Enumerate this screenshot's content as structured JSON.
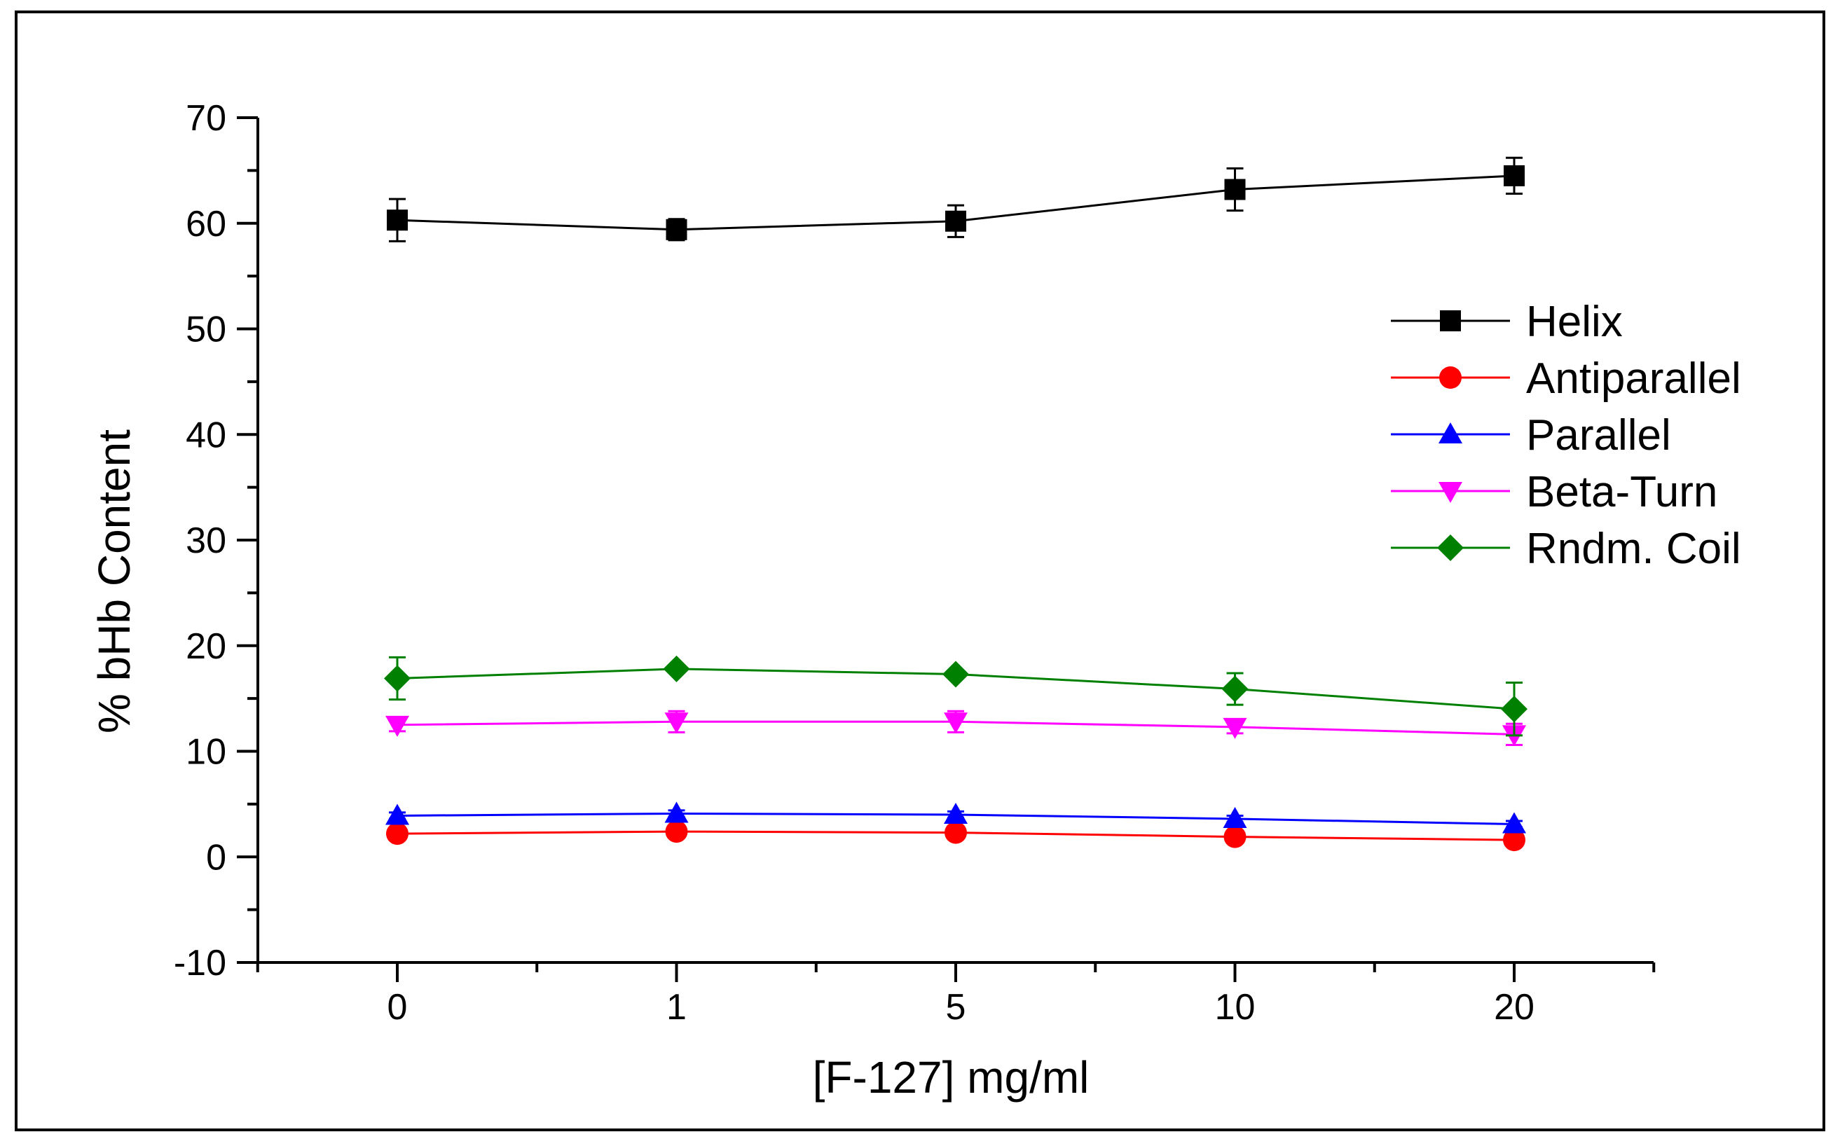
{
  "chart_data": {
    "type": "line",
    "title": "",
    "xlabel": "[F-127] mg/ml",
    "ylabel": "% bHb Content",
    "categories": [
      "0",
      "1",
      "5",
      "10",
      "20"
    ],
    "ylim": [
      -10,
      70
    ],
    "yticks": [
      -10,
      0,
      10,
      20,
      30,
      40,
      50,
      60,
      70
    ],
    "y_minor_step": 5,
    "grid": false,
    "legend_position": "right",
    "series": [
      {
        "name": "Helix",
        "color": "#000000",
        "marker": "square",
        "values": [
          60.3,
          59.4,
          60.2,
          63.2,
          64.5
        ],
        "errors": [
          2.0,
          1.0,
          1.5,
          2.0,
          1.7
        ]
      },
      {
        "name": "Antiparallel",
        "color": "#ff0000",
        "marker": "circle",
        "values": [
          2.2,
          2.4,
          2.3,
          1.9,
          1.6
        ],
        "errors": [
          0.4,
          0.4,
          0.4,
          0.3,
          0.3
        ]
      },
      {
        "name": "Parallel",
        "color": "#0000ff",
        "marker": "triangle-up",
        "values": [
          3.9,
          4.1,
          4.0,
          3.6,
          3.1
        ],
        "errors": [
          0.3,
          0.3,
          0.3,
          0.3,
          0.3
        ]
      },
      {
        "name": "Beta-Turn",
        "color": "#ff00ff",
        "marker": "triangle-down",
        "values": [
          12.5,
          12.8,
          12.8,
          12.3,
          11.6
        ],
        "errors": [
          0.6,
          1.0,
          1.0,
          0.6,
          1.0
        ]
      },
      {
        "name": "Rndm. Coil",
        "color": "#008000",
        "marker": "diamond",
        "values": [
          16.9,
          17.8,
          17.3,
          15.9,
          14.0
        ],
        "errors": [
          2.0,
          0.3,
          0.3,
          1.5,
          2.5
        ]
      }
    ]
  }
}
